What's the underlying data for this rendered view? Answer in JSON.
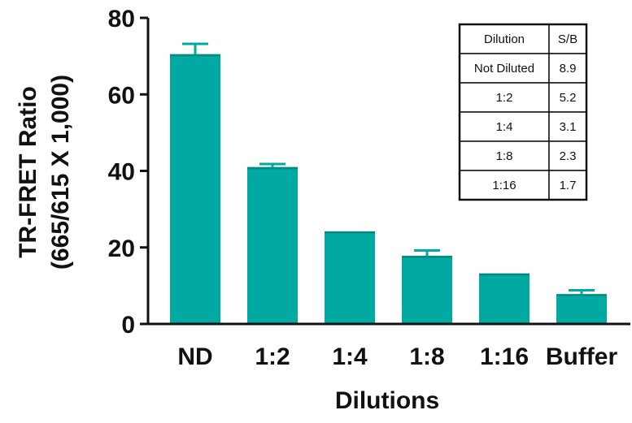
{
  "chart_data": {
    "type": "bar",
    "categories": [
      "ND",
      "1:2",
      "1:4",
      "1:8",
      "1:16",
      "Buffer"
    ],
    "values": [
      70.5,
      41,
      24.2,
      17.8,
      13.2,
      7.8
    ],
    "errors": [
      2.7,
      0.8,
      0,
      1.4,
      0,
      1.0
    ],
    "xlabel": "Dilutions",
    "ylabel_lines": [
      "TR-FRET Ratio",
      "(665/615 X 1,000)"
    ],
    "ylim": [
      0,
      80
    ],
    "yticks": [
      0,
      20,
      40,
      60,
      80
    ],
    "grid": false,
    "bar_color": "#00aaa2",
    "inset_table": {
      "headers": [
        "Dilution",
        "S/B"
      ],
      "rows": [
        [
          "Not Diluted",
          "8.9"
        ],
        [
          "1:2",
          "5.2"
        ],
        [
          "1:4",
          "3.1"
        ],
        [
          "1:8",
          "2.3"
        ],
        [
          "1:16",
          "1.7"
        ]
      ]
    }
  }
}
